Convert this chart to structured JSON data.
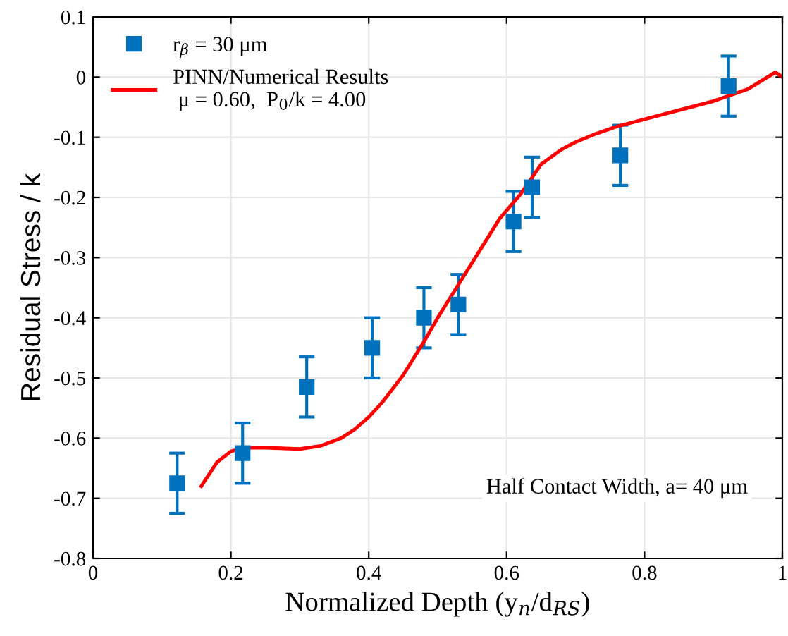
{
  "chart_data": {
    "type": "scatter",
    "xlabel": "Normalized Depth (y$_{n}$/d$_{RS}$)",
    "ylabel": "Residual Stress / k",
    "xlim": [
      0,
      1
    ],
    "ylim": [
      -0.8,
      0.1
    ],
    "xticks": [
      0,
      0.2,
      0.4,
      0.6,
      0.8,
      1
    ],
    "yticks": [
      -0.8,
      -0.7,
      -0.6,
      -0.5,
      -0.4,
      -0.3,
      -0.2,
      -0.1,
      0,
      0.1
    ],
    "grid": true,
    "legend": "top left",
    "annotations": [
      "Half Contact Width, a= 40 μm"
    ],
    "series": [
      {
        "name": "r$_{β}$ = 30 μm",
        "color": "#0072bd",
        "marker": "square",
        "x": [
          0.122,
          0.217,
          0.31,
          0.405,
          0.48,
          0.53,
          0.61,
          0.637,
          0.765,
          0.922
        ],
        "values": [
          -0.675,
          -0.625,
          -0.515,
          -0.45,
          -0.4,
          -0.378,
          -0.24,
          -0.183,
          -0.13,
          -0.015
        ],
        "errors": [
          0.05,
          0.05,
          0.05,
          0.05,
          0.05,
          0.05,
          0.05,
          0.05,
          0.05,
          0.05
        ]
      },
      {
        "type": "line",
        "name": "PINN/Numerical Results\n μ = 0.60,  P$_{0}$/k = 4.00",
        "color": "#ff0000",
        "line_style": "solid",
        "marker": "none",
        "x": [
          0.157,
          0.18,
          0.2,
          0.22,
          0.25,
          0.3,
          0.33,
          0.36,
          0.38,
          0.4,
          0.42,
          0.45,
          0.48,
          0.5,
          0.53,
          0.56,
          0.59,
          0.62,
          0.65,
          0.68,
          0.7,
          0.73,
          0.76,
          0.8,
          0.85,
          0.9,
          0.95,
          0.99,
          1.0
        ],
        "values": [
          -0.68,
          -0.64,
          -0.622,
          -0.616,
          -0.616,
          -0.618,
          -0.613,
          -0.6,
          -0.585,
          -0.565,
          -0.54,
          -0.495,
          -0.44,
          -0.4,
          -0.345,
          -0.29,
          -0.235,
          -0.195,
          -0.145,
          -0.12,
          -0.108,
          -0.094,
          -0.082,
          -0.07,
          -0.055,
          -0.04,
          -0.02,
          0.008,
          0.0
        ]
      }
    ]
  }
}
